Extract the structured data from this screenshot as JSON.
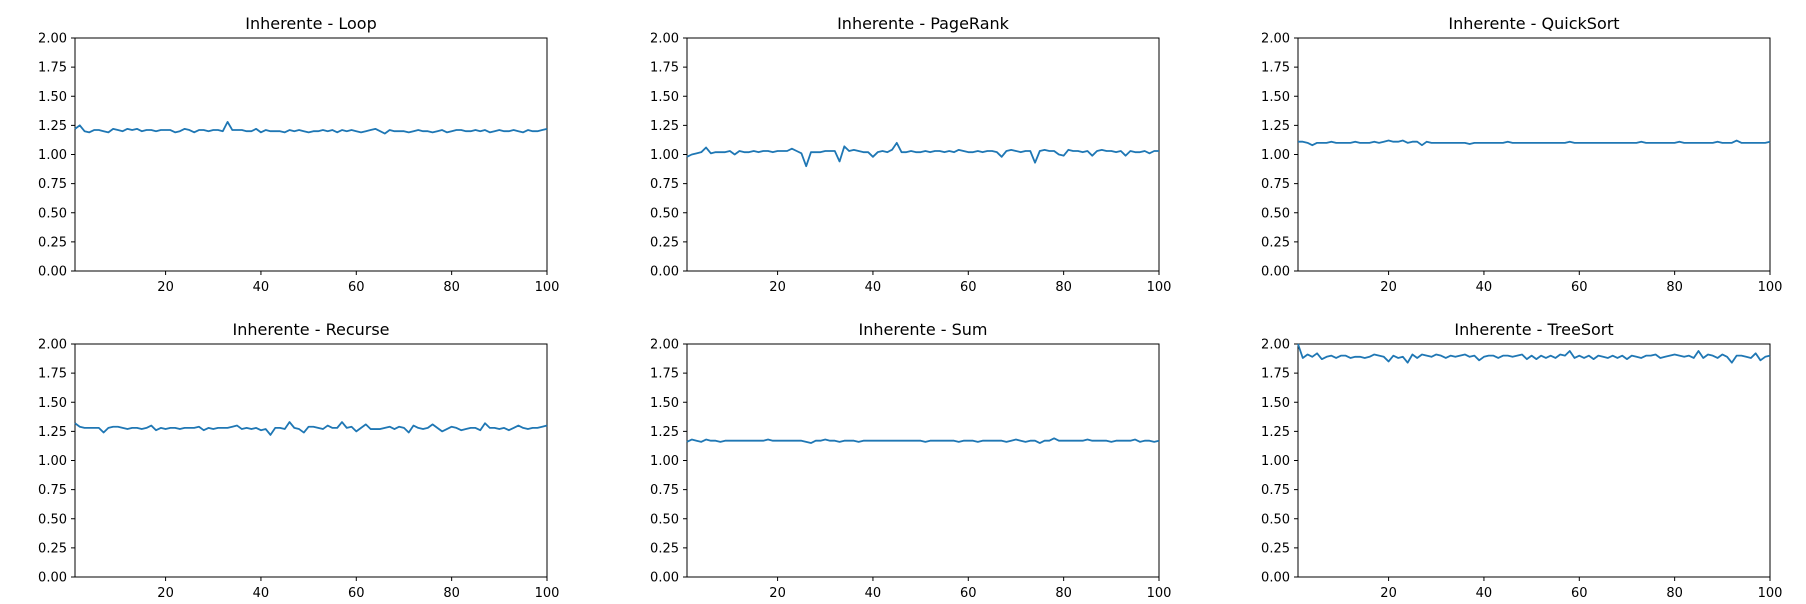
{
  "chart_data": [
    {
      "type": "line",
      "title": "Inherente - Loop",
      "xlim": [
        1,
        100
      ],
      "ylim": [
        0,
        2
      ],
      "xticks": [
        "20",
        "40",
        "60",
        "80",
        "100"
      ],
      "yticks": [
        "0.00",
        "0.25",
        "0.50",
        "0.75",
        "1.00",
        "1.25",
        "1.50",
        "1.75",
        "2.00"
      ],
      "grid": false,
      "series": [
        {
          "color": "#1f77b4",
          "x_start": 1,
          "x_step": 1,
          "values": [
            1.22,
            1.25,
            1.2,
            1.19,
            1.21,
            1.21,
            1.2,
            1.19,
            1.22,
            1.21,
            1.2,
            1.22,
            1.21,
            1.22,
            1.2,
            1.21,
            1.21,
            1.2,
            1.21,
            1.21,
            1.21,
            1.19,
            1.2,
            1.22,
            1.21,
            1.19,
            1.21,
            1.21,
            1.2,
            1.21,
            1.21,
            1.2,
            1.28,
            1.21,
            1.21,
            1.21,
            1.2,
            1.2,
            1.22,
            1.19,
            1.21,
            1.2,
            1.2,
            1.2,
            1.19,
            1.21,
            1.2,
            1.21,
            1.2,
            1.19,
            1.2,
            1.2,
            1.21,
            1.2,
            1.21,
            1.19,
            1.21,
            1.2,
            1.21,
            1.2,
            1.19,
            1.2,
            1.21,
            1.22,
            1.2,
            1.18,
            1.21,
            1.2,
            1.2,
            1.2,
            1.19,
            1.2,
            1.21,
            1.2,
            1.2,
            1.19,
            1.2,
            1.21,
            1.19,
            1.2,
            1.21,
            1.21,
            1.2,
            1.2,
            1.21,
            1.2,
            1.21,
            1.19,
            1.2,
            1.21,
            1.2,
            1.2,
            1.21,
            1.2,
            1.19,
            1.21,
            1.2,
            1.2,
            1.21,
            1.22
          ]
        }
      ]
    },
    {
      "type": "line",
      "title": "Inherente - PageRank",
      "xlim": [
        1,
        100
      ],
      "ylim": [
        0,
        2
      ],
      "xticks": [
        "20",
        "40",
        "60",
        "80",
        "100"
      ],
      "yticks": [
        "0.00",
        "0.25",
        "0.50",
        "0.75",
        "1.00",
        "1.25",
        "1.50",
        "1.75",
        "2.00"
      ],
      "grid": false,
      "series": [
        {
          "color": "#1f77b4",
          "x_start": 1,
          "x_step": 1,
          "values": [
            0.98,
            1.0,
            1.01,
            1.02,
            1.06,
            1.01,
            1.02,
            1.02,
            1.02,
            1.03,
            1.0,
            1.03,
            1.02,
            1.02,
            1.03,
            1.02,
            1.03,
            1.03,
            1.02,
            1.03,
            1.03,
            1.03,
            1.05,
            1.03,
            1.01,
            0.9,
            1.02,
            1.02,
            1.02,
            1.03,
            1.03,
            1.03,
            0.94,
            1.07,
            1.03,
            1.04,
            1.03,
            1.02,
            1.02,
            0.98,
            1.02,
            1.03,
            1.02,
            1.04,
            1.1,
            1.02,
            1.02,
            1.03,
            1.02,
            1.02,
            1.03,
            1.02,
            1.03,
            1.03,
            1.02,
            1.03,
            1.02,
            1.04,
            1.03,
            1.02,
            1.02,
            1.03,
            1.02,
            1.03,
            1.03,
            1.02,
            0.98,
            1.03,
            1.04,
            1.03,
            1.02,
            1.03,
            1.03,
            0.93,
            1.03,
            1.04,
            1.03,
            1.03,
            1.0,
            0.99,
            1.04,
            1.03,
            1.03,
            1.02,
            1.03,
            0.99,
            1.03,
            1.04,
            1.03,
            1.03,
            1.02,
            1.03,
            0.99,
            1.03,
            1.02,
            1.02,
            1.03,
            1.01,
            1.03,
            1.03
          ]
        }
      ]
    },
    {
      "type": "line",
      "title": "Inherente - QuickSort",
      "xlim": [
        1,
        100
      ],
      "ylim": [
        0,
        2
      ],
      "xticks": [
        "20",
        "40",
        "60",
        "80",
        "100"
      ],
      "yticks": [
        "0.00",
        "0.25",
        "0.50",
        "0.75",
        "1.00",
        "1.25",
        "1.50",
        "1.75",
        "2.00"
      ],
      "grid": false,
      "series": [
        {
          "color": "#1f77b4",
          "x_start": 1,
          "x_step": 1,
          "values": [
            1.11,
            1.11,
            1.1,
            1.08,
            1.1,
            1.1,
            1.1,
            1.11,
            1.1,
            1.1,
            1.1,
            1.1,
            1.11,
            1.1,
            1.1,
            1.1,
            1.11,
            1.1,
            1.11,
            1.12,
            1.11,
            1.11,
            1.12,
            1.1,
            1.11,
            1.11,
            1.08,
            1.11,
            1.1,
            1.1,
            1.1,
            1.1,
            1.1,
            1.1,
            1.1,
            1.1,
            1.09,
            1.1,
            1.1,
            1.1,
            1.1,
            1.1,
            1.1,
            1.1,
            1.11,
            1.1,
            1.1,
            1.1,
            1.1,
            1.1,
            1.1,
            1.1,
            1.1,
            1.1,
            1.1,
            1.1,
            1.1,
            1.11,
            1.1,
            1.1,
            1.1,
            1.1,
            1.1,
            1.1,
            1.1,
            1.1,
            1.1,
            1.1,
            1.1,
            1.1,
            1.1,
            1.1,
            1.11,
            1.1,
            1.1,
            1.1,
            1.1,
            1.1,
            1.1,
            1.1,
            1.11,
            1.1,
            1.1,
            1.1,
            1.1,
            1.1,
            1.1,
            1.1,
            1.11,
            1.1,
            1.1,
            1.1,
            1.12,
            1.1,
            1.1,
            1.1,
            1.1,
            1.1,
            1.1,
            1.11
          ]
        }
      ]
    },
    {
      "type": "line",
      "title": "Inherente - Recurse",
      "xlim": [
        1,
        100
      ],
      "ylim": [
        0,
        2
      ],
      "xticks": [
        "20",
        "40",
        "60",
        "80",
        "100"
      ],
      "yticks": [
        "0.00",
        "0.25",
        "0.50",
        "0.75",
        "1.00",
        "1.25",
        "1.50",
        "1.75",
        "2.00"
      ],
      "grid": false,
      "series": [
        {
          "color": "#1f77b4",
          "x_start": 1,
          "x_step": 1,
          "values": [
            1.32,
            1.29,
            1.28,
            1.28,
            1.28,
            1.28,
            1.24,
            1.28,
            1.29,
            1.29,
            1.28,
            1.27,
            1.28,
            1.28,
            1.27,
            1.28,
            1.3,
            1.26,
            1.28,
            1.27,
            1.28,
            1.28,
            1.27,
            1.28,
            1.28,
            1.28,
            1.29,
            1.26,
            1.28,
            1.27,
            1.28,
            1.28,
            1.28,
            1.29,
            1.3,
            1.27,
            1.28,
            1.27,
            1.28,
            1.26,
            1.27,
            1.22,
            1.28,
            1.28,
            1.27,
            1.33,
            1.28,
            1.27,
            1.24,
            1.29,
            1.29,
            1.28,
            1.27,
            1.3,
            1.28,
            1.28,
            1.33,
            1.28,
            1.29,
            1.25,
            1.28,
            1.31,
            1.27,
            1.27,
            1.27,
            1.28,
            1.29,
            1.27,
            1.29,
            1.28,
            1.24,
            1.3,
            1.28,
            1.27,
            1.28,
            1.31,
            1.28,
            1.25,
            1.27,
            1.29,
            1.28,
            1.26,
            1.27,
            1.28,
            1.28,
            1.26,
            1.32,
            1.28,
            1.28,
            1.27,
            1.28,
            1.26,
            1.28,
            1.3,
            1.28,
            1.27,
            1.28,
            1.28,
            1.29,
            1.3
          ]
        }
      ]
    },
    {
      "type": "line",
      "title": "Inherente - Sum",
      "xlim": [
        1,
        100
      ],
      "ylim": [
        0,
        2
      ],
      "xticks": [
        "20",
        "40",
        "60",
        "80",
        "100"
      ],
      "yticks": [
        "0.00",
        "0.25",
        "0.50",
        "0.75",
        "1.00",
        "1.25",
        "1.50",
        "1.75",
        "2.00"
      ],
      "grid": false,
      "series": [
        {
          "color": "#1f77b4",
          "x_start": 1,
          "x_step": 1,
          "values": [
            1.16,
            1.18,
            1.17,
            1.16,
            1.18,
            1.17,
            1.17,
            1.16,
            1.17,
            1.17,
            1.17,
            1.17,
            1.17,
            1.17,
            1.17,
            1.17,
            1.17,
            1.18,
            1.17,
            1.17,
            1.17,
            1.17,
            1.17,
            1.17,
            1.17,
            1.16,
            1.15,
            1.17,
            1.17,
            1.18,
            1.17,
            1.17,
            1.16,
            1.17,
            1.17,
            1.17,
            1.16,
            1.17,
            1.17,
            1.17,
            1.17,
            1.17,
            1.17,
            1.17,
            1.17,
            1.17,
            1.17,
            1.17,
            1.17,
            1.17,
            1.16,
            1.17,
            1.17,
            1.17,
            1.17,
            1.17,
            1.17,
            1.16,
            1.17,
            1.17,
            1.17,
            1.16,
            1.17,
            1.17,
            1.17,
            1.17,
            1.17,
            1.16,
            1.17,
            1.18,
            1.17,
            1.16,
            1.17,
            1.17,
            1.15,
            1.17,
            1.17,
            1.19,
            1.17,
            1.17,
            1.17,
            1.17,
            1.17,
            1.17,
            1.18,
            1.17,
            1.17,
            1.17,
            1.17,
            1.16,
            1.17,
            1.17,
            1.17,
            1.17,
            1.18,
            1.16,
            1.17,
            1.17,
            1.16,
            1.17
          ]
        }
      ]
    },
    {
      "type": "line",
      "title": "Inherente - TreeSort",
      "xlim": [
        1,
        100
      ],
      "ylim": [
        0,
        2
      ],
      "xticks": [
        "20",
        "40",
        "60",
        "80",
        "100"
      ],
      "yticks": [
        "0.00",
        "0.25",
        "0.50",
        "0.75",
        "1.00",
        "1.25",
        "1.50",
        "1.75",
        "2.00"
      ],
      "grid": false,
      "series": [
        {
          "color": "#1f77b4",
          "x_start": 1,
          "x_step": 1,
          "values": [
            2.0,
            1.88,
            1.91,
            1.89,
            1.92,
            1.87,
            1.89,
            1.9,
            1.88,
            1.9,
            1.9,
            1.88,
            1.89,
            1.89,
            1.88,
            1.89,
            1.91,
            1.9,
            1.89,
            1.85,
            1.9,
            1.88,
            1.89,
            1.84,
            1.91,
            1.88,
            1.91,
            1.9,
            1.89,
            1.91,
            1.9,
            1.88,
            1.9,
            1.89,
            1.9,
            1.91,
            1.89,
            1.9,
            1.86,
            1.89,
            1.9,
            1.9,
            1.88,
            1.9,
            1.9,
            1.89,
            1.9,
            1.91,
            1.87,
            1.9,
            1.87,
            1.9,
            1.88,
            1.9,
            1.88,
            1.91,
            1.9,
            1.94,
            1.88,
            1.9,
            1.88,
            1.9,
            1.87,
            1.9,
            1.89,
            1.88,
            1.9,
            1.88,
            1.9,
            1.87,
            1.9,
            1.89,
            1.88,
            1.9,
            1.9,
            1.91,
            1.88,
            1.89,
            1.9,
            1.91,
            1.9,
            1.89,
            1.9,
            1.88,
            1.94,
            1.88,
            1.91,
            1.9,
            1.88,
            1.91,
            1.89,
            1.84,
            1.9,
            1.9,
            1.89,
            1.88,
            1.92,
            1.86,
            1.89,
            1.9
          ]
        }
      ]
    }
  ]
}
